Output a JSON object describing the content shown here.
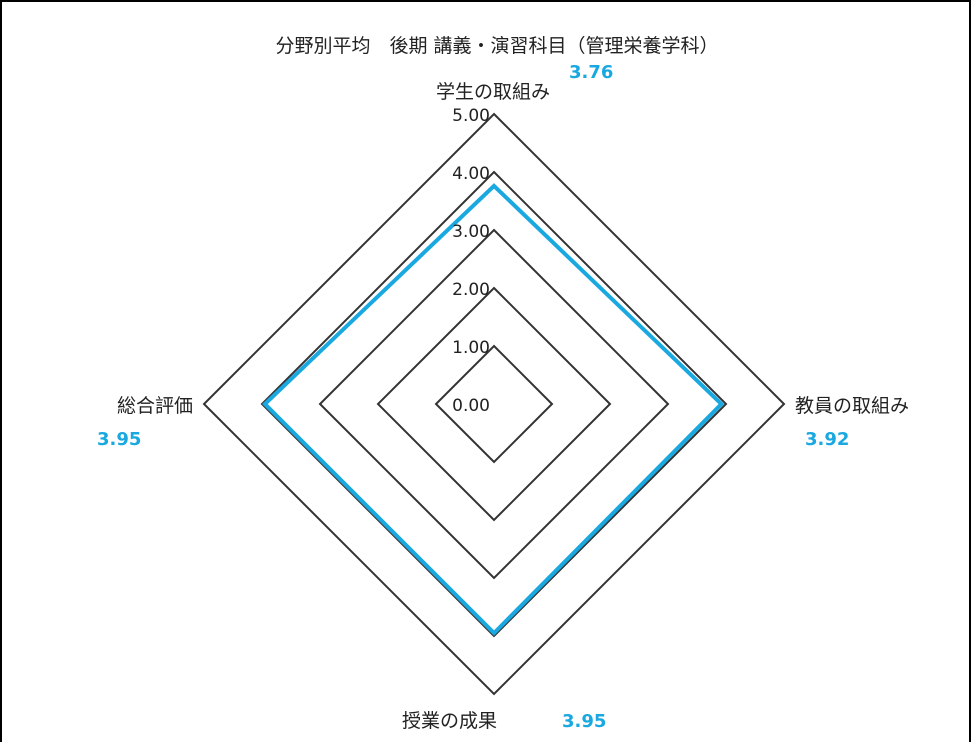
{
  "chart_data": {
    "type": "radar",
    "title": "分野別平均　後期 講義・演習科目（管理栄養学科）",
    "axes": [
      "学生の取組み",
      "教員の取組み",
      "授業の成果",
      "総合評価"
    ],
    "series": [
      {
        "values": [
          3.76,
          3.92,
          3.95,
          3.95
        ]
      }
    ],
    "value_labels": [
      "3.76",
      "3.92",
      "3.95",
      "3.95"
    ],
    "rlim": [
      0,
      5
    ],
    "ticks": [
      "0.00",
      "1.00",
      "2.00",
      "3.00",
      "4.00",
      "5.00"
    ],
    "grid": true,
    "colors": {
      "series": "#19A8E0",
      "grid": "#333333"
    }
  }
}
